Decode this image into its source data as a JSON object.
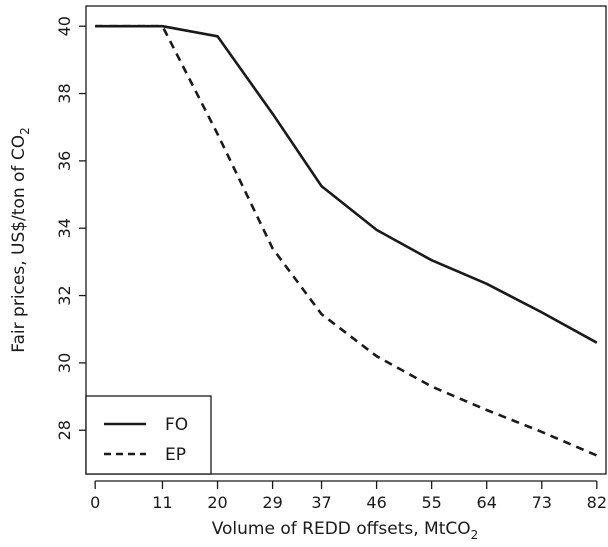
{
  "chart_data": {
    "type": "line",
    "xlabel": "Volume of REDD offsets, MtCO",
    "xlabel_sub": "2",
    "ylabel": "Fair prices, US$/ton of CO",
    "ylabel_sub": "2",
    "x_ticks": [
      "0",
      "11",
      "20",
      "29",
      "37",
      "46",
      "55",
      "64",
      "73",
      "82"
    ],
    "x": [
      0,
      11,
      20,
      29,
      37,
      46,
      55,
      64,
      73,
      82
    ],
    "y_ticks": [
      28,
      30,
      32,
      34,
      36,
      38,
      40
    ],
    "ylim": [
      26.7,
      40.6
    ],
    "xlim": [
      -1.5,
      83.5
    ],
    "grid": false,
    "legend_position": "bottom-left",
    "series": [
      {
        "name": "FO",
        "style": "solid",
        "values": [
          40.0,
          40.0,
          39.7,
          37.4,
          35.25,
          33.95,
          33.05,
          32.35,
          31.5,
          30.6
        ]
      },
      {
        "name": "EP",
        "style": "dashed",
        "values": [
          40.0,
          40.0,
          36.8,
          33.4,
          31.45,
          30.2,
          29.3,
          28.6,
          27.95,
          27.25
        ]
      }
    ]
  }
}
